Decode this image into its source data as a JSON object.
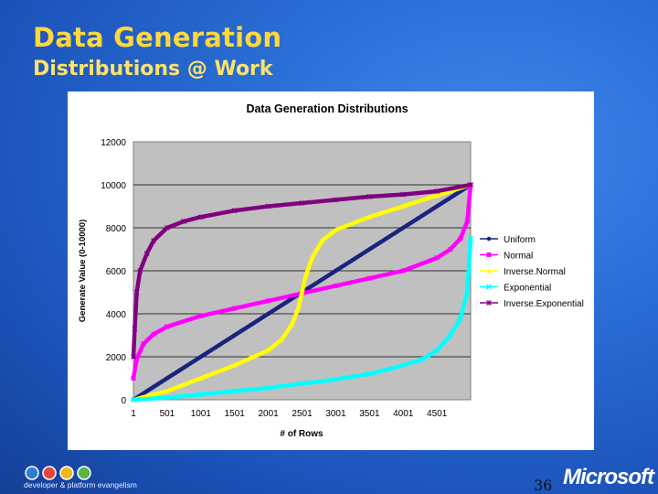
{
  "slide": {
    "title": "Data Generation",
    "subtitle": "Distributions @ Work",
    "page_number": "36",
    "brand": "Microsoft",
    "footer_text": "developer & platform evangelism"
  },
  "colors": {
    "background": "#2a6fd6",
    "title": "#ffd83a",
    "plot_area": "#c0c0c0",
    "uniform": "#1a237e",
    "normal": "#ff00ff",
    "inverse_normal": "#ffff00",
    "exponential": "#00ffff",
    "inverse_exponential": "#800080"
  },
  "chart_data": {
    "type": "scatter",
    "title": "Data Generation Distributions",
    "xlabel": "# of Rows",
    "ylabel": "Generate Value (0-10000)",
    "xlim": [
      1,
      5000
    ],
    "ylim": [
      0,
      12000
    ],
    "grid": true,
    "legend_position": "right",
    "x_ticks": [
      "1",
      "501",
      "1001",
      "1501",
      "2001",
      "2501",
      "3001",
      "3501",
      "4001",
      "4501"
    ],
    "y_ticks": [
      "0",
      "2000",
      "4000",
      "6000",
      "8000",
      "10000",
      "12000"
    ],
    "series": [
      {
        "name": "Uniform",
        "marker": "dot",
        "color": "#1a237e",
        "x": [
          1,
          500,
          1000,
          1500,
          2000,
          2500,
          3000,
          3500,
          4000,
          4500,
          5000
        ],
        "values": [
          0,
          1000,
          2000,
          3000,
          4000,
          5000,
          6000,
          7000,
          8000,
          9000,
          10000
        ]
      },
      {
        "name": "Normal",
        "marker": "square",
        "color": "#ff00ff",
        "x": [
          1,
          50,
          150,
          300,
          500,
          1000,
          1500,
          2000,
          2500,
          3000,
          3500,
          4000,
          4500,
          4700,
          4850,
          4950,
          5000
        ],
        "values": [
          1000,
          1900,
          2600,
          3050,
          3400,
          3900,
          4250,
          4600,
          4950,
          5300,
          5650,
          6000,
          6600,
          7000,
          7500,
          8300,
          10000
        ]
      },
      {
        "name": "Inverse.Normal",
        "marker": "triangle",
        "color": "#ffff00",
        "x": [
          1,
          500,
          1000,
          1500,
          2000,
          2200,
          2350,
          2450,
          2500,
          2550,
          2650,
          2800,
          3000,
          3500,
          4000,
          4500,
          5000
        ],
        "values": [
          0,
          400,
          1000,
          1600,
          2300,
          2800,
          3500,
          4300,
          5000,
          5700,
          6600,
          7400,
          7900,
          8500,
          9000,
          9500,
          10000
        ]
      },
      {
        "name": "Exponential",
        "marker": "x",
        "color": "#00ffff",
        "x": [
          1,
          500,
          1000,
          1500,
          2000,
          2500,
          3000,
          3500,
          4000,
          4300,
          4500,
          4700,
          4850,
          4950,
          5000
        ],
        "values": [
          0,
          100,
          250,
          400,
          550,
          750,
          950,
          1200,
          1600,
          1900,
          2300,
          3000,
          3800,
          5000,
          7500
        ]
      },
      {
        "name": "Inverse.Exponential",
        "marker": "star",
        "color": "#800080",
        "x": [
          1,
          20,
          50,
          100,
          200,
          300,
          500,
          750,
          1000,
          1500,
          2000,
          2500,
          3000,
          3500,
          4000,
          4500,
          5000
        ],
        "values": [
          2000,
          3300,
          5000,
          6000,
          6800,
          7400,
          8000,
          8300,
          8500,
          8800,
          9000,
          9150,
          9300,
          9450,
          9550,
          9700,
          10000
        ]
      }
    ]
  }
}
